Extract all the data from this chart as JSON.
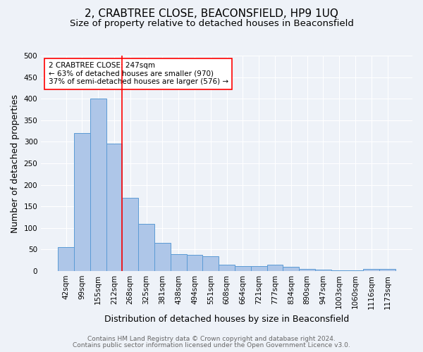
{
  "title": "2, CRABTREE CLOSE, BEACONSFIELD, HP9 1UQ",
  "subtitle": "Size of property relative to detached houses in Beaconsfield",
  "xlabel": "Distribution of detached houses by size in Beaconsfield",
  "ylabel": "Number of detached properties",
  "categories": [
    "42sqm",
    "99sqm",
    "155sqm",
    "212sqm",
    "268sqm",
    "325sqm",
    "381sqm",
    "438sqm",
    "494sqm",
    "551sqm",
    "608sqm",
    "664sqm",
    "721sqm",
    "777sqm",
    "834sqm",
    "890sqm",
    "947sqm",
    "1003sqm",
    "1060sqm",
    "1116sqm",
    "1173sqm"
  ],
  "values": [
    55,
    320,
    400,
    295,
    170,
    110,
    65,
    40,
    38,
    35,
    14,
    12,
    12,
    15,
    10,
    5,
    3,
    2,
    1,
    5,
    5
  ],
  "bar_color": "#aec6e8",
  "bar_edge_color": "#5b9bd5",
  "vline_color": "red",
  "vline_pos": 3.5,
  "annotation_text": "2 CRABTREE CLOSE: 247sqm\n← 63% of detached houses are smaller (970)\n37% of semi-detached houses are larger (576) →",
  "annotation_box_color": "white",
  "annotation_box_edge_color": "red",
  "ylim": [
    0,
    500
  ],
  "yticks": [
    0,
    50,
    100,
    150,
    200,
    250,
    300,
    350,
    400,
    450,
    500
  ],
  "footer_line1": "Contains HM Land Registry data © Crown copyright and database right 2024.",
  "footer_line2": "Contains public sector information licensed under the Open Government Licence v3.0.",
  "background_color": "#eef2f8",
  "grid_color": "white",
  "title_fontsize": 11,
  "subtitle_fontsize": 9.5,
  "axis_label_fontsize": 9,
  "tick_fontsize": 7.5,
  "footer_fontsize": 6.5,
  "annotation_fontsize": 7.5
}
